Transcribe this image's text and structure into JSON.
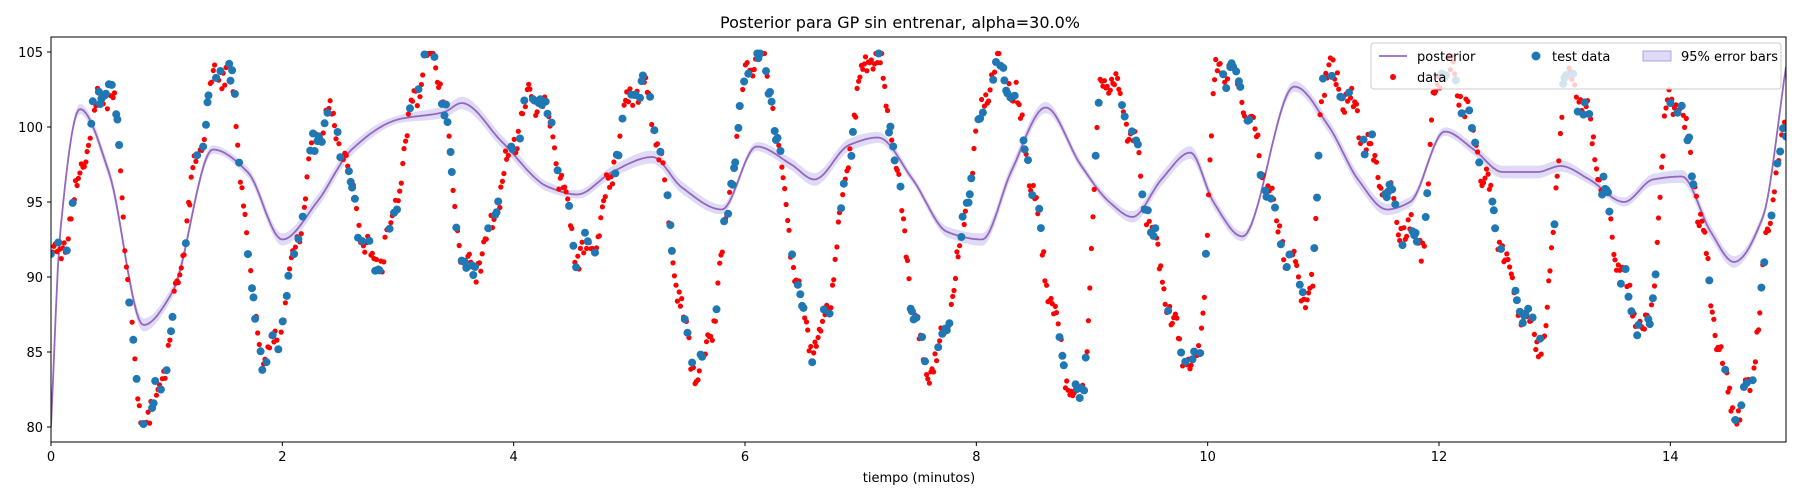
{
  "chart_data": {
    "type": "line",
    "title": "Posterior para GP sin entrenar, alpha=30.0%",
    "xlabel": "tiempo (minutos)",
    "ylabel": "",
    "xlim": [
      0,
      15
    ],
    "ylim": [
      79,
      106
    ],
    "xticks": [
      0,
      2,
      4,
      6,
      8,
      10,
      12,
      14
    ],
    "yticks": [
      80,
      85,
      90,
      95,
      100,
      105
    ],
    "grid": false,
    "legend": {
      "position": "top-right",
      "columns": 3,
      "entries": [
        "posterior",
        "test data",
        "95% error bars",
        "data"
      ]
    },
    "colors": {
      "posterior": "#9467bd",
      "band": "#d9d4f5",
      "data": "#ff0000",
      "test_data": "#1f77b4"
    },
    "signal_peaks": [
      [
        0.5,
        102.5
      ],
      [
        1.5,
        104
      ],
      [
        2.4,
        100.5
      ],
      [
        3.3,
        105
      ],
      [
        4.2,
        102
      ],
      [
        5.1,
        102.7
      ],
      [
        6.1,
        105
      ],
      [
        7.1,
        105
      ],
      [
        8.2,
        104
      ],
      [
        9.1,
        103.5
      ],
      [
        10.1,
        104.2
      ],
      [
        11.0,
        103.5
      ],
      [
        12.0,
        104
      ],
      [
        13.1,
        103.2
      ],
      [
        14.0,
        102
      ]
    ],
    "signal_troughs": [
      [
        0.0,
        91
      ],
      [
        0.8,
        80.5
      ],
      [
        1.85,
        84.5
      ],
      [
        2.8,
        91
      ],
      [
        3.6,
        90.5
      ],
      [
        4.6,
        91.5
      ],
      [
        5.6,
        84
      ],
      [
        6.6,
        85.5
      ],
      [
        7.6,
        84
      ],
      [
        8.9,
        82
      ],
      [
        9.9,
        84
      ],
      [
        10.9,
        89
      ],
      [
        11.85,
        92.5
      ],
      [
        12.9,
        86
      ],
      [
        13.8,
        86.5
      ],
      [
        14.6,
        81
      ],
      [
        15.0,
        99
      ]
    ],
    "test_data_fraction": 0.3,
    "posterior_mean": {
      "x": [
        0,
        0.08,
        0.25,
        0.5,
        0.8,
        1.05,
        1.4,
        1.7,
        2.0,
        2.3,
        2.6,
        3.0,
        3.4,
        3.55,
        3.9,
        4.3,
        4.55,
        4.85,
        5.2,
        5.45,
        5.8,
        6.1,
        6.4,
        6.6,
        6.9,
        7.15,
        7.45,
        7.75,
        8.05,
        8.3,
        8.6,
        8.9,
        9.15,
        9.35,
        9.6,
        9.85,
        10.05,
        10.3,
        10.75,
        11.05,
        11.3,
        11.55,
        11.75,
        12.05,
        12.3,
        12.55,
        12.85,
        13.05,
        13.3,
        13.6,
        13.85,
        14.1,
        14.35,
        14.55,
        14.8,
        15.0
      ],
      "y": [
        80,
        93,
        101.2,
        97,
        86.8,
        89,
        98.5,
        97,
        92.5,
        95,
        98.5,
        100.5,
        101,
        101.6,
        99,
        96,
        95.5,
        97,
        98,
        96,
        94.5,
        98.7,
        97.5,
        96.5,
        98.8,
        99.3,
        96.5,
        93,
        92.5,
        97,
        101.3,
        97.5,
        95,
        94,
        96.5,
        98.3,
        95,
        92.7,
        102.7,
        100,
        96.5,
        94.5,
        95,
        99.7,
        98.5,
        97,
        97,
        97.4,
        96.5,
        95,
        96.5,
        96.7,
        93,
        91,
        94,
        104
      ]
    }
  }
}
